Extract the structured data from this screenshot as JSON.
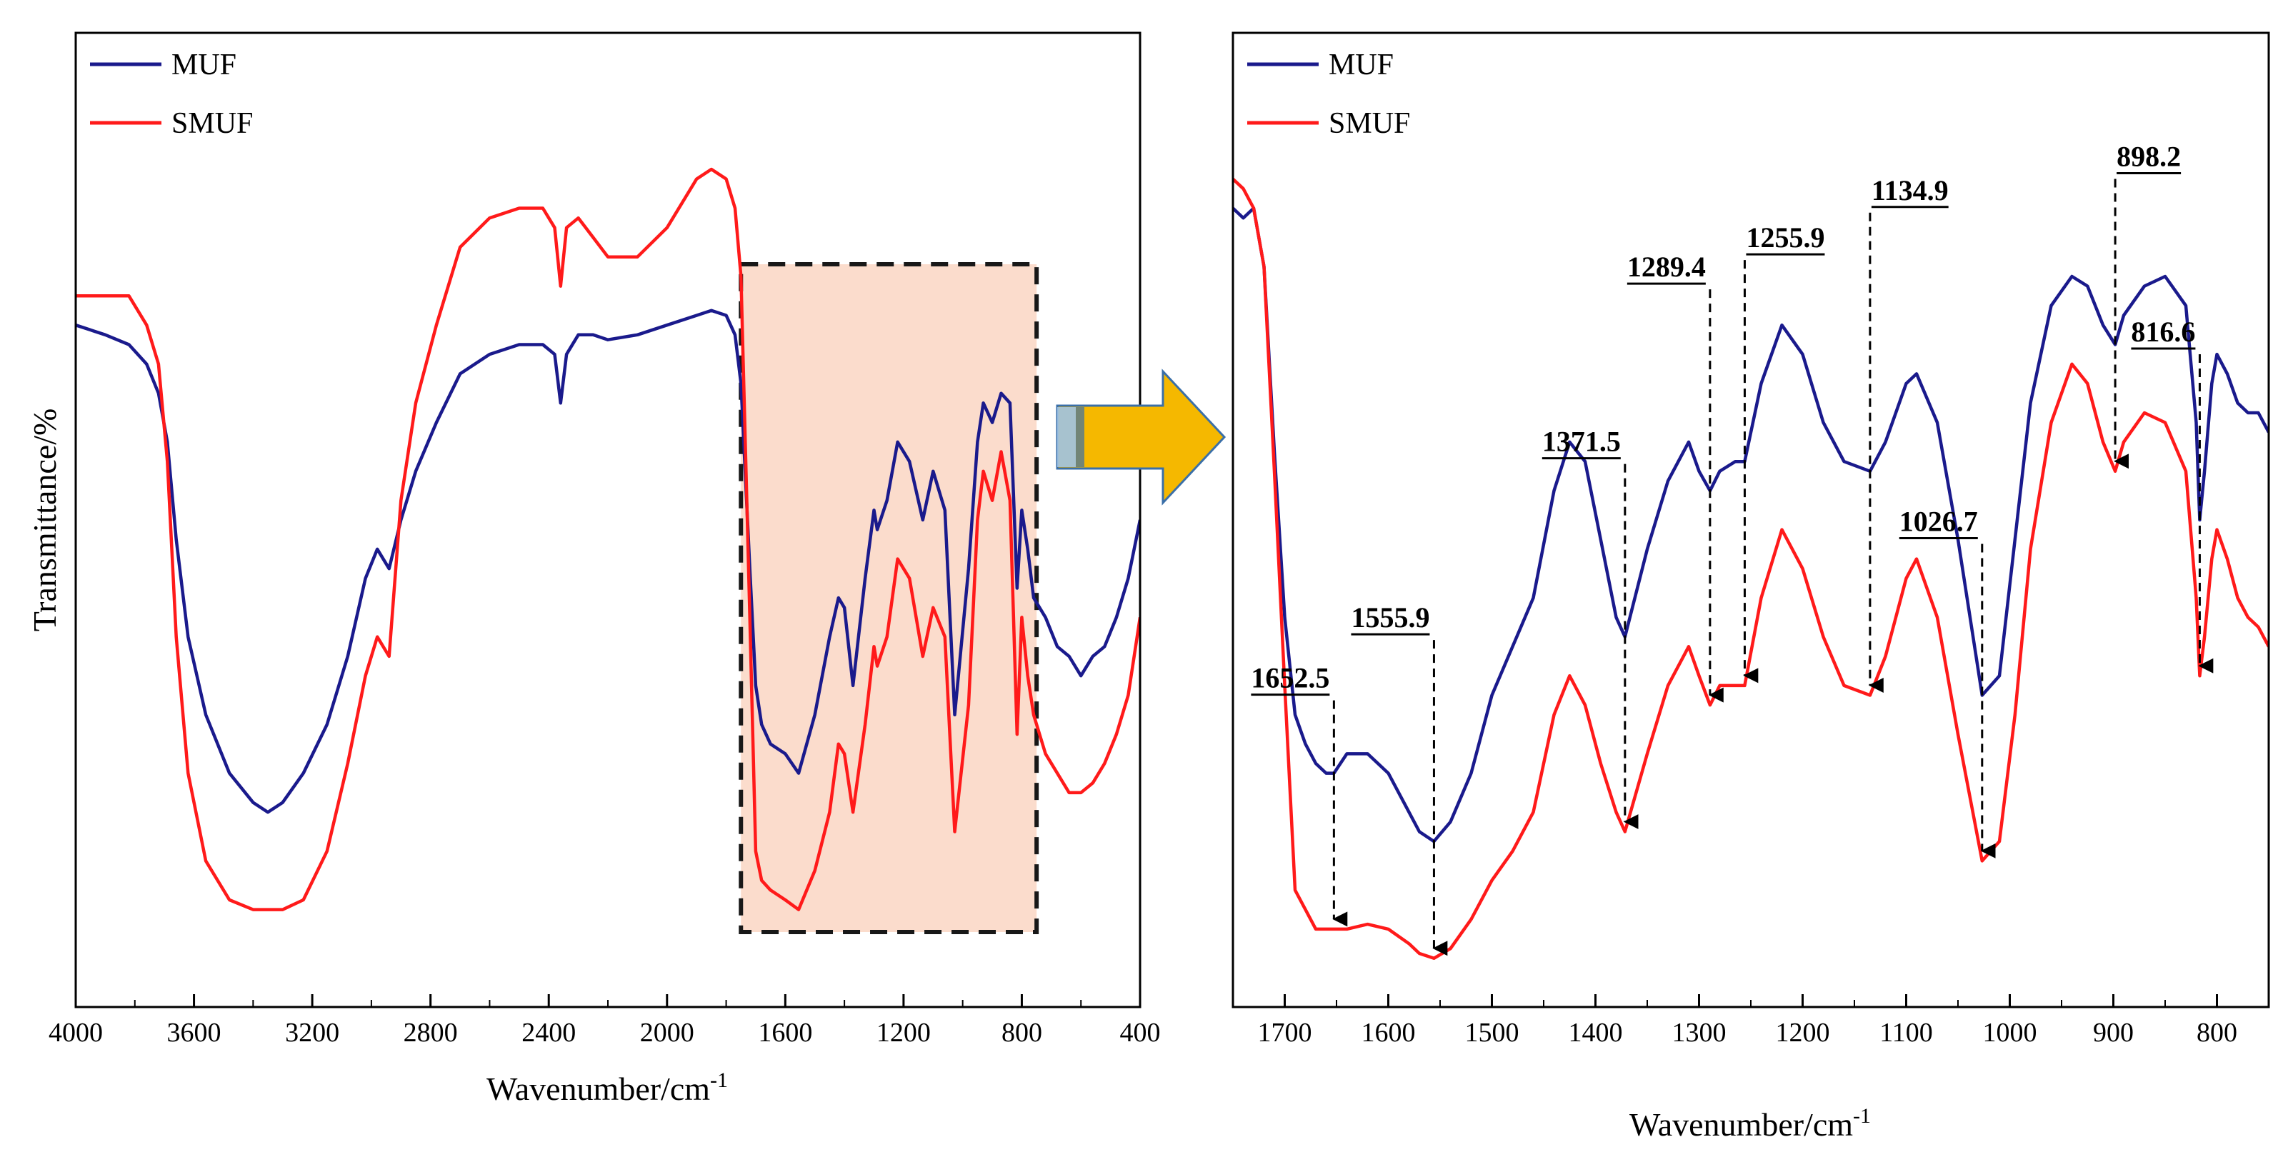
{
  "colors": {
    "muf": "#1a1a8c",
    "smuf": "#ff1a1a",
    "highlight": "#fbd9c7",
    "arrow": "#f5b800",
    "arrow_edge": "#3a6fa8"
  },
  "chart_data": [
    {
      "type": "line",
      "panel": "overview",
      "xlabel": "Wavenumber/cm",
      "xlabel_sup": "-1",
      "ylabel": "Transmittance/%",
      "xlim": [
        4000,
        400
      ],
      "ylim": [
        0,
        100
      ],
      "x_ticks": [
        4000,
        3600,
        3200,
        2800,
        2400,
        2000,
        1600,
        1200,
        800,
        400
      ],
      "legend": [
        "MUF",
        "SMUF"
      ],
      "legend_position": "top-left",
      "highlight_range": [
        1750,
        750
      ],
      "series": [
        {
          "name": "MUF",
          "color": "#1a1a8c",
          "x": [
            4000,
            3900,
            3820,
            3760,
            3720,
            3690,
            3660,
            3620,
            3560,
            3480,
            3400,
            3350,
            3300,
            3230,
            3150,
            3080,
            3020,
            2980,
            2940,
            2900,
            2850,
            2780,
            2700,
            2600,
            2500,
            2420,
            2380,
            2360,
            2340,
            2300,
            2250,
            2200,
            2100,
            2000,
            1900,
            1850,
            1800,
            1770,
            1750,
            1720,
            1700,
            1680,
            1650,
            1600,
            1555,
            1500,
            1450,
            1420,
            1400,
            1371,
            1330,
            1300,
            1289,
            1256,
            1220,
            1180,
            1135,
            1100,
            1060,
            1027,
            980,
            950,
            930,
            900,
            870,
            840,
            816,
            800,
            780,
            760,
            720,
            680,
            640,
            600,
            560,
            520,
            480,
            440,
            400
          ],
          "y": [
            70,
            69,
            68,
            66,
            63,
            58,
            48,
            38,
            30,
            24,
            21,
            20,
            21,
            24,
            29,
            36,
            44,
            47,
            45,
            50,
            55,
            60,
            65,
            67,
            68,
            68,
            67,
            62,
            67,
            69,
            69,
            68.5,
            69,
            70,
            71,
            71.5,
            71,
            69,
            64,
            45,
            33,
            29,
            27,
            26,
            24,
            30,
            38,
            42,
            41,
            33,
            44,
            51,
            49,
            52,
            58,
            56,
            50,
            55,
            51,
            30,
            45,
            58,
            62,
            60,
            63,
            62,
            43,
            51,
            47,
            42,
            40,
            37,
            36,
            34,
            36,
            37,
            40,
            44,
            50
          ]
        },
        {
          "name": "SMUF",
          "color": "#ff1a1a",
          "x": [
            4000,
            3900,
            3820,
            3760,
            3720,
            3690,
            3660,
            3620,
            3560,
            3480,
            3400,
            3350,
            3300,
            3230,
            3150,
            3080,
            3020,
            2980,
            2940,
            2900,
            2850,
            2780,
            2700,
            2600,
            2500,
            2420,
            2380,
            2360,
            2340,
            2300,
            2250,
            2200,
            2100,
            2000,
            1900,
            1850,
            1800,
            1770,
            1750,
            1720,
            1700,
            1680,
            1650,
            1600,
            1555,
            1500,
            1450,
            1420,
            1400,
            1371,
            1330,
            1300,
            1289,
            1256,
            1220,
            1180,
            1135,
            1100,
            1060,
            1027,
            980,
            950,
            930,
            900,
            870,
            840,
            816,
            800,
            780,
            760,
            720,
            680,
            640,
            600,
            560,
            520,
            480,
            440,
            400
          ],
          "y": [
            73,
            73,
            73,
            70,
            66,
            56,
            38,
            24,
            15,
            11,
            10,
            10,
            10,
            11,
            16,
            25,
            34,
            38,
            36,
            52,
            62,
            70,
            78,
            81,
            82,
            82,
            80,
            74,
            80,
            81,
            79,
            77,
            77,
            80,
            85,
            86,
            85,
            82,
            75,
            40,
            16,
            13,
            12,
            11,
            10,
            14,
            20,
            27,
            26,
            20,
            29,
            37,
            35,
            38,
            46,
            44,
            36,
            41,
            38,
            18,
            31,
            50,
            55,
            52,
            57,
            52,
            28,
            40,
            34,
            30,
            26,
            24,
            22,
            22,
            23,
            25,
            28,
            32,
            40
          ]
        }
      ]
    },
    {
      "type": "line",
      "panel": "zoom",
      "xlabel": "Wavenumber/cm",
      "xlabel_sup": "-1",
      "xlim": [
        1750,
        750
      ],
      "ylim": [
        0,
        100
      ],
      "x_ticks": [
        1700,
        1600,
        1500,
        1400,
        1300,
        1200,
        1100,
        1000,
        900,
        800
      ],
      "legend": [
        "MUF",
        "SMUF"
      ],
      "legend_position": "top-left",
      "series": [
        {
          "name": "MUF",
          "color": "#1a1a8c",
          "x": [
            1750,
            1740,
            1730,
            1720,
            1710,
            1700,
            1690,
            1680,
            1670,
            1660,
            1652.5,
            1640,
            1620,
            1600,
            1580,
            1570,
            1555.9,
            1540,
            1520,
            1500,
            1480,
            1460,
            1440,
            1425,
            1410,
            1395,
            1380,
            1371.5,
            1350,
            1330,
            1310,
            1300,
            1289.4,
            1280,
            1265,
            1255.9,
            1240,
            1220,
            1200,
            1180,
            1160,
            1134.9,
            1120,
            1100,
            1090,
            1070,
            1050,
            1026.7,
            1010,
            995,
            980,
            960,
            940,
            925,
            910,
            898.2,
            890,
            870,
            850,
            830,
            820,
            816.6,
            812,
            805,
            800,
            790,
            780,
            770,
            760,
            750
          ],
          "y": [
            82,
            81,
            82,
            76,
            57,
            40,
            30,
            27,
            25,
            24,
            24,
            26,
            26,
            24,
            20,
            18,
            17,
            19,
            24,
            32,
            37,
            42,
            53,
            58,
            56,
            48,
            40,
            38,
            47,
            54,
            58,
            55,
            53,
            55,
            56,
            56,
            64,
            70,
            67,
            60,
            56,
            55,
            58,
            64,
            65,
            60,
            48,
            32,
            34,
            48,
            62,
            72,
            75,
            74,
            70,
            68,
            71,
            74,
            75,
            72,
            60,
            50,
            55,
            64,
            67,
            65,
            62,
            61,
            61,
            59
          ]
        },
        {
          "name": "SMUF",
          "color": "#ff1a1a",
          "x": [
            1750,
            1740,
            1730,
            1720,
            1710,
            1700,
            1690,
            1680,
            1670,
            1660,
            1652.5,
            1640,
            1620,
            1600,
            1580,
            1570,
            1555.9,
            1540,
            1520,
            1500,
            1480,
            1460,
            1440,
            1425,
            1410,
            1395,
            1380,
            1371.5,
            1350,
            1330,
            1310,
            1300,
            1289.4,
            1280,
            1265,
            1255.9,
            1240,
            1220,
            1200,
            1180,
            1160,
            1134.9,
            1120,
            1100,
            1090,
            1070,
            1050,
            1026.7,
            1010,
            995,
            980,
            960,
            940,
            925,
            910,
            898.2,
            890,
            870,
            850,
            830,
            820,
            816.6,
            812,
            805,
            800,
            790,
            780,
            770,
            760,
            750
          ],
          "y": [
            85,
            84,
            82,
            76,
            55,
            33,
            12,
            10,
            8,
            8,
            8,
            8,
            8.5,
            8,
            6.5,
            5.5,
            5,
            6,
            9,
            13,
            16,
            20,
            30,
            34,
            31,
            25,
            20,
            18,
            26,
            33,
            37,
            34,
            31,
            33,
            33,
            33,
            42,
            49,
            45,
            38,
            33,
            32,
            36,
            44,
            46,
            40,
            28,
            15,
            17,
            30,
            47,
            60,
            66,
            64,
            58,
            55,
            58,
            61,
            60,
            55,
            42,
            34,
            38,
            46,
            49,
            46,
            42,
            40,
            39,
            37
          ]
        }
      ],
      "annotations": [
        {
          "label": "1652.5",
          "x": 1652.5
        },
        {
          "label": "1555.9",
          "x": 1555.9
        },
        {
          "label": "1371.5",
          "x": 1371.5
        },
        {
          "label": "1289.4",
          "x": 1289.4
        },
        {
          "label": "1255.9",
          "x": 1255.9
        },
        {
          "label": "1134.9",
          "x": 1134.9
        },
        {
          "label": "1026.7",
          "x": 1026.7
        },
        {
          "label": "898.2",
          "x": 898.2
        },
        {
          "label": "816.6",
          "x": 816.6
        }
      ]
    }
  ]
}
